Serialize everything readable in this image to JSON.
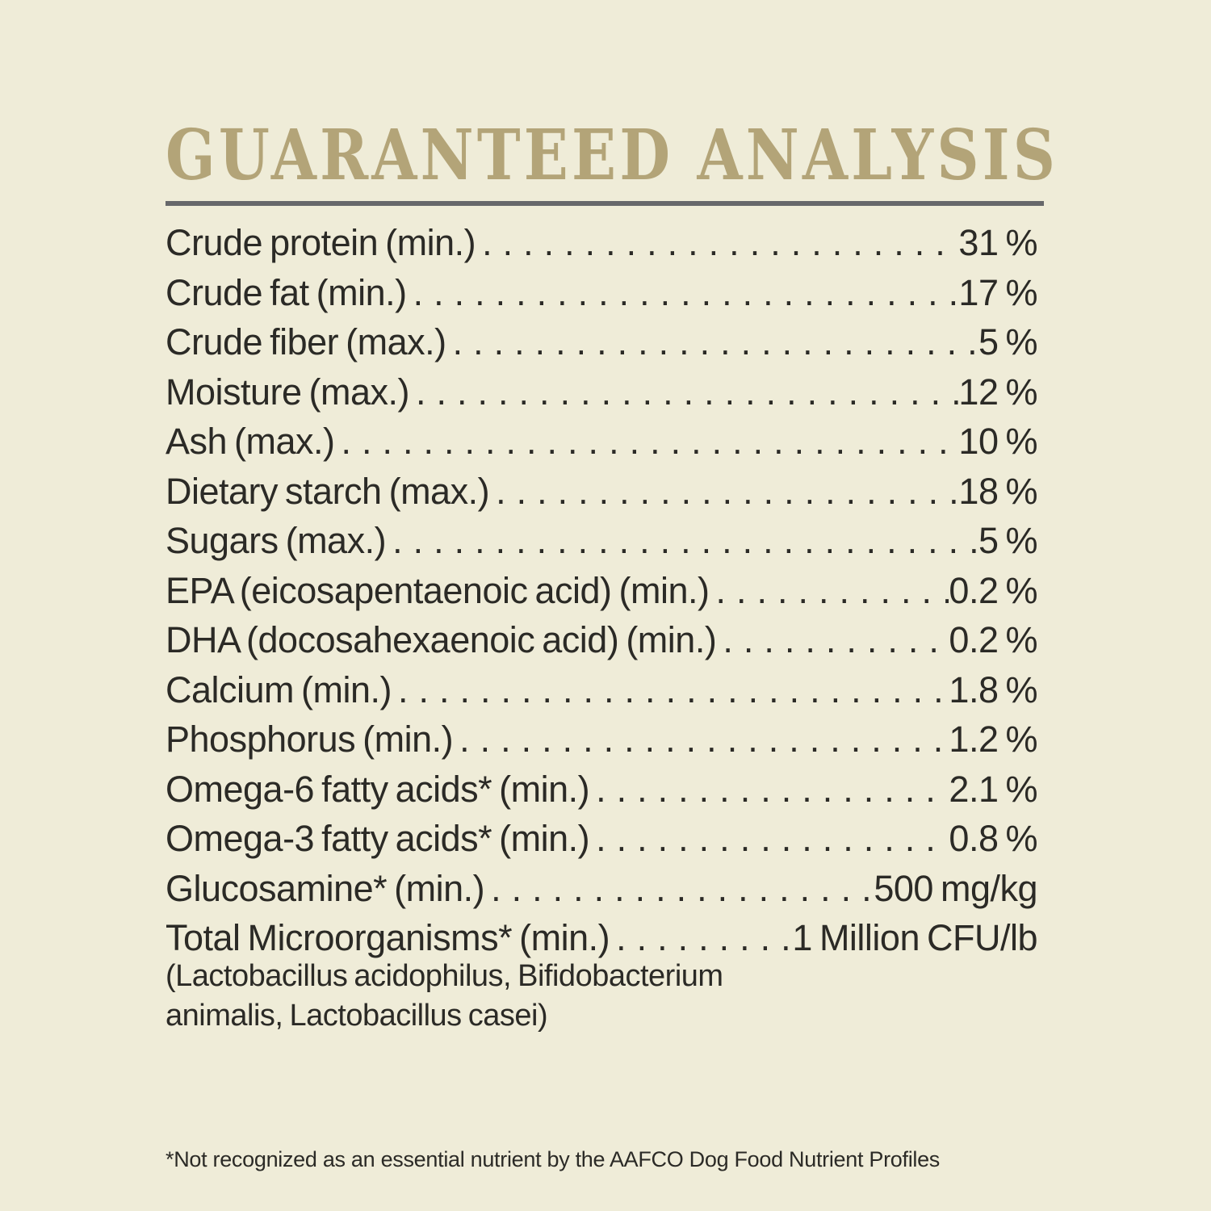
{
  "colors": {
    "background": "#efecd8",
    "text": "#2b2a26",
    "title": "#b3a478",
    "divider": "#67686b"
  },
  "header": {
    "title": "GUARANTEED ANALYSIS"
  },
  "analysis": {
    "rows": [
      {
        "label": "Crude protein (min.)",
        "value": "31 %"
      },
      {
        "label": "Crude fat (min.)",
        "value": "17 %"
      },
      {
        "label": "Crude fiber (max.)",
        "value": "5 %"
      },
      {
        "label": "Moisture (max.)",
        "value": "12 %"
      },
      {
        "label": "Ash (max.)",
        "value": "10 %"
      },
      {
        "label": "Dietary starch (max.)",
        "value": "18 %"
      },
      {
        "label": "Sugars (max.)",
        "value": "5 %"
      },
      {
        "label": "EPA (eicosapentaenoic acid) (min.)",
        "value": "0.2 %"
      },
      {
        "label": "DHA (docosahexaenoic acid) (min.)",
        "value": "0.2 %"
      },
      {
        "label": "Calcium (min.)",
        "value": "1.8 %"
      },
      {
        "label": "Phosphorus (min.)",
        "value": "1.2 %"
      },
      {
        "label": "Omega-6 fatty acids* (min.)",
        "value": "2.1 %"
      },
      {
        "label": "Omega-3 fatty acids* (min.)",
        "value": "0.8 %"
      },
      {
        "label": "Glucosamine* (min.)",
        "value": "500 mg/kg"
      },
      {
        "label": "Total Microorganisms* (min.)",
        "value": "1 Million CFU/lb"
      }
    ],
    "species_note_lines": [
      "(Lactobacillus acidophilus, Bifidobacterium",
      "animalis, Lactobacillus casei)"
    ]
  },
  "footnote": "*Not recognized as an essential nutrient by the AAFCO Dog Food Nutrient Profiles"
}
